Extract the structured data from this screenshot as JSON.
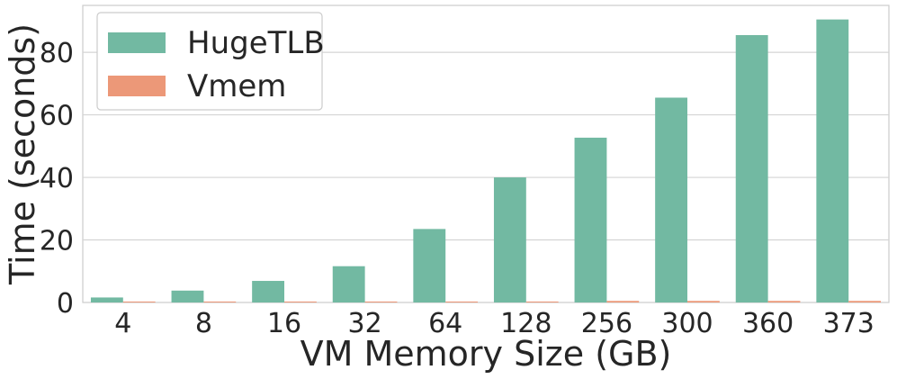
{
  "chart_data": {
    "type": "bar",
    "xlabel": "VM Memory Size (GB)",
    "ylabel": "Time (seconds)",
    "categories": [
      "4",
      "8",
      "16",
      "32",
      "64",
      "128",
      "256",
      "300",
      "360",
      "373"
    ],
    "series": [
      {
        "name": "HugeTLB",
        "color": "#72b9a2",
        "values": [
          1.6,
          3.8,
          6.9,
          11.6,
          23.5,
          40.0,
          52.7,
          65.5,
          85.5,
          90.5
        ]
      },
      {
        "name": "Vmem",
        "color": "#ec9878",
        "values": [
          0.3,
          0.3,
          0.3,
          0.3,
          0.3,
          0.3,
          0.5,
          0.5,
          0.5,
          0.5
        ]
      }
    ],
    "ylim": [
      0,
      95
    ],
    "yticks": [
      0,
      20,
      40,
      60,
      80
    ],
    "grid": true,
    "legend_position": "top-left"
  }
}
